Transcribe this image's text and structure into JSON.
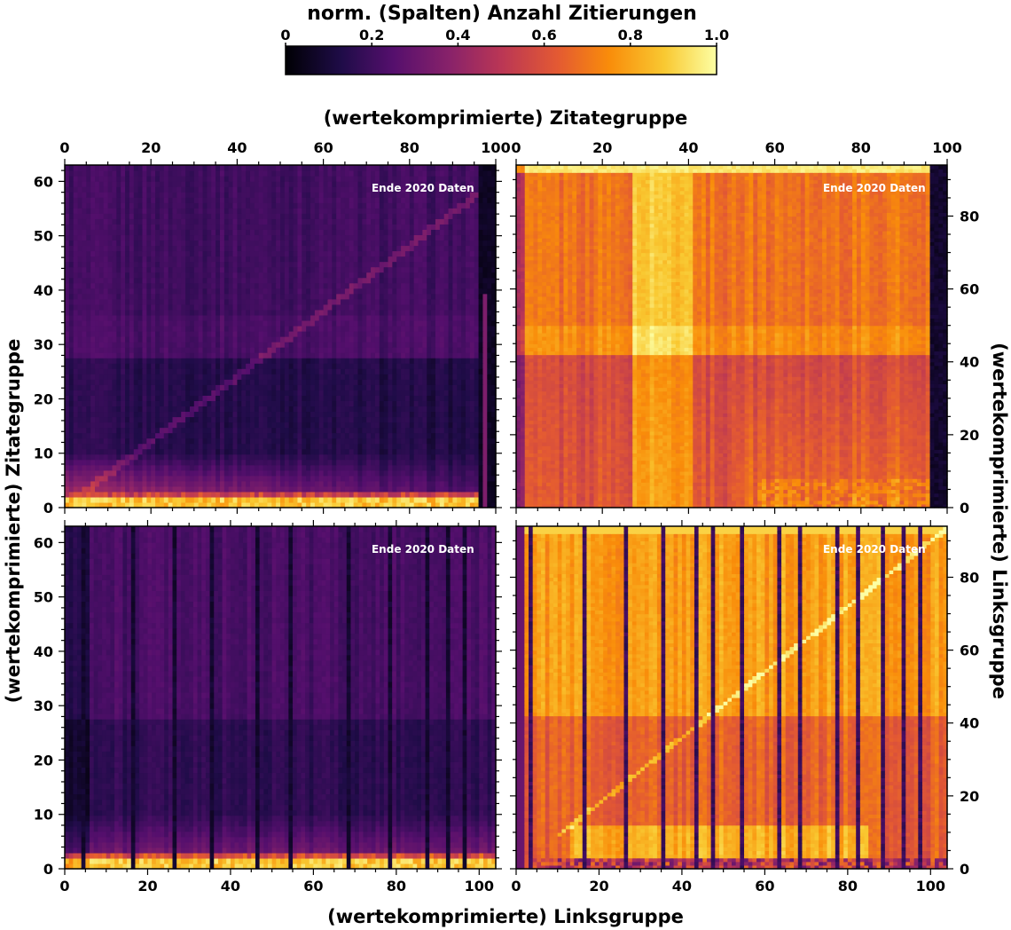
{
  "colorbar": {
    "title": "norm. (Spalten) Anzahl Zitierungen",
    "ticks": [
      "0",
      "0.2",
      "0.4",
      "0.6",
      "0.8",
      "1.0"
    ],
    "tick_values": [
      0,
      0.2,
      0.4,
      0.6,
      0.8,
      1.0
    ],
    "colormap": "inferno"
  },
  "labels": {
    "top_x": "(wertekomprimierte) Zitategruppe",
    "bottom_x": "(wertekomprimierte) Linksgruppe",
    "left_y": "(wertekomprimierte) Zitategruppe",
    "right_y": "(wertekomprimierte) Linksgruppe"
  },
  "chart_data": [
    {
      "type": "heatmap",
      "panel": "top-left",
      "annotation": "Ende 2020 Daten",
      "x_ticks": [
        "0",
        "20",
        "40",
        "60",
        "80",
        "100"
      ],
      "y_ticks": [
        "0",
        "10",
        "20",
        "30",
        "40",
        "50",
        "60"
      ],
      "xlim": [
        0,
        100
      ],
      "ylim": [
        0,
        63
      ],
      "x_axis_position": "top",
      "y_axis_position": "left",
      "cols": 100,
      "rows": 64,
      "pattern": "low overall; bright bottom rows (y=0..2); faint diagonal; darker band y<28"
    },
    {
      "type": "heatmap",
      "panel": "top-right",
      "annotation": "Ende 2020 Daten",
      "x_ticks": [
        "0",
        "20",
        "40",
        "60",
        "80",
        "100"
      ],
      "y_ticks": [
        "0",
        "20",
        "40",
        "60",
        "80"
      ],
      "xlim": [
        0,
        100
      ],
      "ylim": [
        0,
        94
      ],
      "x_axis_position": "top",
      "y_axis_position": "right",
      "cols": 100,
      "rows": 94,
      "pattern": "high overall; bright top row; bright columns 27-40; bright bottom-right; darker band y<42"
    },
    {
      "type": "heatmap",
      "panel": "bottom-left",
      "annotation": "Ende 2020 Daten",
      "x_ticks": [
        "0",
        "20",
        "40",
        "60",
        "80",
        "100"
      ],
      "y_ticks": [
        "0",
        "10",
        "20",
        "30",
        "40",
        "50",
        "60"
      ],
      "xlim": [
        0,
        104
      ],
      "ylim": [
        0,
        63
      ],
      "x_axis_position": "bottom",
      "y_axis_position": "left",
      "cols": 104,
      "rows": 64,
      "pattern": "low overall; bright bottom rows; dark vertical stripes"
    },
    {
      "type": "heatmap",
      "panel": "bottom-right",
      "annotation": "Ende 2020 Daten",
      "x_ticks": [
        "0",
        "20",
        "40",
        "60",
        "80",
        "100"
      ],
      "y_ticks": [
        "0",
        "20",
        "40",
        "60",
        "80"
      ],
      "xlim": [
        0,
        104
      ],
      "ylim": [
        0,
        94
      ],
      "x_axis_position": "bottom",
      "y_axis_position": "right",
      "cols": 104,
      "rows": 94,
      "pattern": "high overall; many dark vertical stripes; bright bottom; darker band y<42"
    }
  ]
}
